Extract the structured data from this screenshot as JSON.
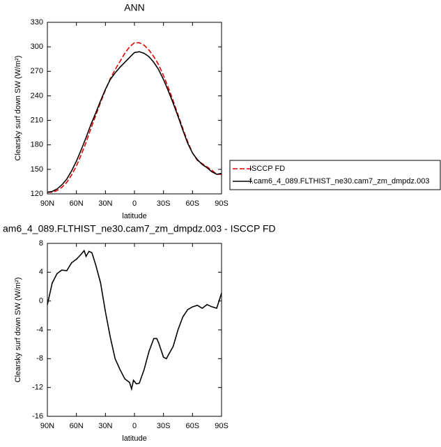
{
  "chart_data": [
    {
      "type": "line",
      "title": "ANN",
      "x_label": "latitude",
      "y_label": "Clearsky surf down SW (W/m²)",
      "legend": "right",
      "xlim": [
        90,
        -90
      ],
      "xticks": [
        {
          "value": 90,
          "label": "90N"
        },
        {
          "value": 60,
          "label": "60N"
        },
        {
          "value": 30,
          "label": "30N"
        },
        0,
        {
          "value": -30,
          "label": "30S"
        },
        {
          "value": -60,
          "label": "60S"
        },
        {
          "value": -90,
          "label": "90S"
        }
      ],
      "ylim": [
        120,
        330
      ],
      "yticks": [
        120,
        150,
        180,
        210,
        240,
        270,
        300,
        330
      ],
      "x": [
        90,
        85,
        80,
        75,
        70,
        65,
        60,
        55,
        50,
        45,
        40,
        35,
        30,
        25,
        20,
        15,
        10,
        5,
        0,
        -5,
        -10,
        -15,
        -20,
        -25,
        -30,
        -35,
        -40,
        -45,
        -50,
        -55,
        -60,
        -65,
        -70,
        -75,
        -80,
        -85,
        -90
      ],
      "series": [
        {
          "name": "ISCCP FD",
          "color": "#e00000",
          "dash": true,
          "values": [
            122,
            122,
            124,
            128,
            134,
            143,
            154,
            168,
            183,
            200,
            216,
            232,
            247,
            261,
            272,
            282,
            292,
            300,
            305,
            305,
            302,
            296,
            288,
            278,
            265,
            250,
            234,
            217,
            200,
            184,
            170,
            161,
            157,
            153,
            149,
            144,
            144
          ]
        },
        {
          "name": "f.cam6_4_089.FLTHIST_ne30.cam7_zm_dmpdz.003",
          "color": "#000000",
          "dash": false,
          "values": [
            122,
            123,
            126,
            131,
            138,
            148,
            160,
            174,
            189,
            205,
            219,
            234,
            248,
            260,
            268,
            275,
            281,
            287,
            293,
            294,
            292,
            288,
            281,
            272,
            260,
            246,
            231,
            215,
            198,
            182,
            170,
            162,
            156,
            152,
            147,
            144,
            145
          ]
        }
      ]
    },
    {
      "type": "line",
      "title": "am6_4_089.FLTHIST_ne30.cam7_zm_dmpdz.003 - ISCCP FD",
      "x_label": "latitude",
      "y_label": "Clearsky surf down SW (W/m²)",
      "xlim": [
        90,
        -90
      ],
      "xticks": [
        {
          "value": 90,
          "label": "90N"
        },
        {
          "value": 60,
          "label": "60N"
        },
        {
          "value": 30,
          "label": "30N"
        },
        0,
        {
          "value": -30,
          "label": "30S"
        },
        {
          "value": -60,
          "label": "60S"
        },
        {
          "value": -90,
          "label": "90S"
        }
      ],
      "ylim": [
        -16,
        8
      ],
      "yticks": [
        -16,
        -12,
        -8,
        -4,
        0,
        4,
        8
      ],
      "x": [
        90,
        85,
        80,
        75,
        70,
        65,
        60,
        55,
        52,
        50,
        47,
        44,
        40,
        37,
        35,
        30,
        25,
        20,
        15,
        10,
        5,
        3,
        1,
        -2,
        -5,
        -10,
        -15,
        -20,
        -23,
        -25,
        -30,
        -33,
        -35,
        -40,
        -45,
        -50,
        -55,
        -60,
        -65,
        -70,
        -75,
        -80,
        -85,
        -90
      ],
      "series": [
        {
          "color": "#000000",
          "dash": false,
          "values": [
            -0.5,
            2.5,
            3.8,
            4.3,
            4.2,
            5.3,
            5.8,
            6.5,
            7,
            6.2,
            6.9,
            6.7,
            5.0,
            3.5,
            2.5,
            -1.5,
            -5,
            -8,
            -9.5,
            -10.8,
            -11.3,
            -12.2,
            -11.0,
            -11.5,
            -11.4,
            -9.5,
            -7,
            -5.2,
            -5.2,
            -5.8,
            -7.8,
            -8,
            -7.5,
            -6.3,
            -4,
            -2.2,
            -1.2,
            -0.8,
            -0.6,
            -1.0,
            -0.5,
            -0.8,
            -1.0,
            1.1
          ]
        }
      ]
    }
  ]
}
